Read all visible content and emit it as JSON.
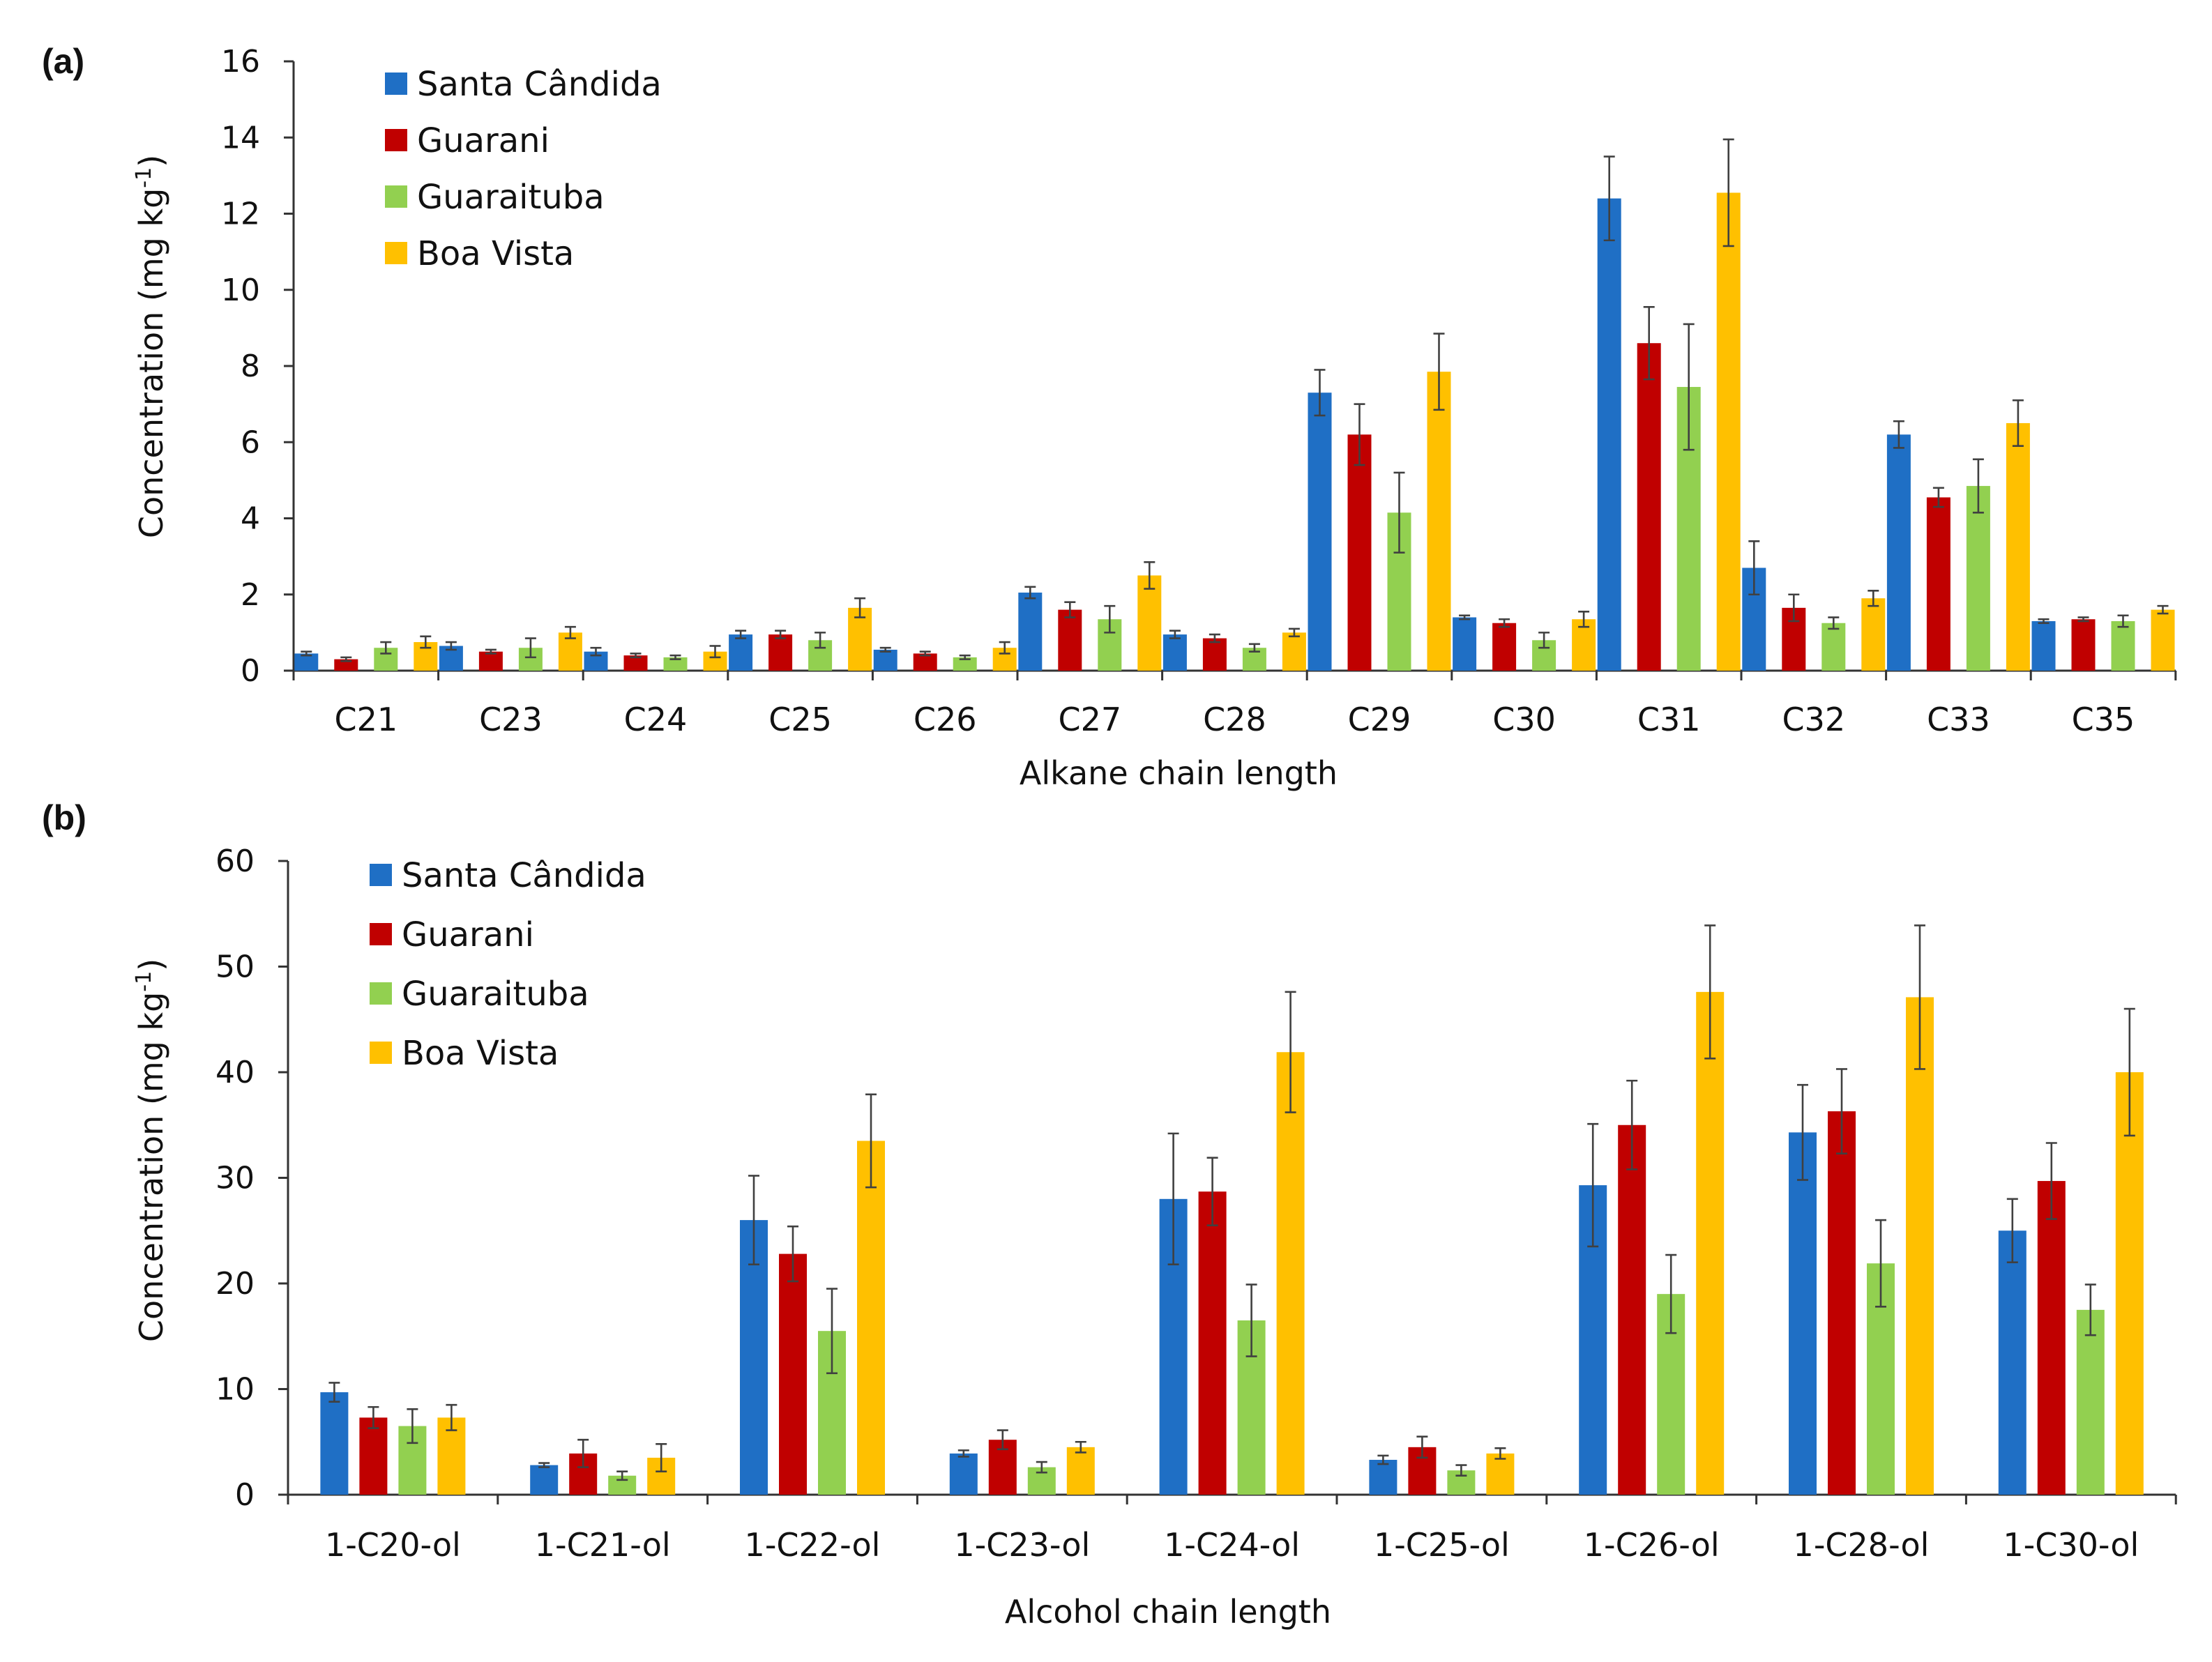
{
  "chart_data": [
    {
      "type": "bar",
      "panel_label": "(a)",
      "xlabel": "Alkane chain length",
      "ylabel_main": "Concentration (mg kg",
      "ylabel_sup": "-1",
      "ylabel_end": ")",
      "ylim": [
        0,
        16
      ],
      "yticks": [
        0,
        2,
        4,
        6,
        8,
        10,
        12,
        14,
        16
      ],
      "legend_position": "top-left",
      "categories": [
        "C21",
        "C23",
        "C24",
        "C25",
        "C26",
        "C27",
        "C28",
        "C29",
        "C30",
        "C31",
        "C32",
        "C33",
        "C35"
      ],
      "series": [
        {
          "name": "Santa Cândida",
          "color": "#1f6fc5",
          "values": [
            0.45,
            0.65,
            0.5,
            0.95,
            0.55,
            2.05,
            0.95,
            7.3,
            1.4,
            12.4,
            2.7,
            6.2,
            1.3
          ],
          "errors": [
            0.05,
            0.1,
            0.1,
            0.1,
            0.05,
            0.15,
            0.1,
            0.6,
            0.05,
            1.1,
            0.7,
            0.35,
            0.05
          ]
        },
        {
          "name": "Guarani",
          "color": "#c00000",
          "values": [
            0.3,
            0.5,
            0.4,
            0.95,
            0.45,
            1.6,
            0.85,
            6.2,
            1.25,
            8.6,
            1.65,
            4.55,
            1.35
          ],
          "errors": [
            0.05,
            0.05,
            0.05,
            0.1,
            0.05,
            0.2,
            0.1,
            0.8,
            0.1,
            0.95,
            0.35,
            0.25,
            0.05
          ]
        },
        {
          "name": "Guaraituba",
          "color": "#92d050",
          "values": [
            0.6,
            0.6,
            0.35,
            0.8,
            0.35,
            1.35,
            0.6,
            4.15,
            0.8,
            7.45,
            1.25,
            4.85,
            1.3
          ],
          "errors": [
            0.15,
            0.25,
            0.05,
            0.2,
            0.05,
            0.35,
            0.1,
            1.05,
            0.2,
            1.65,
            0.15,
            0.7,
            0.15
          ]
        },
        {
          "name": "Boa Vista",
          "color": "#ffc000",
          "values": [
            0.75,
            1.0,
            0.5,
            1.65,
            0.6,
            2.5,
            1.0,
            7.85,
            1.35,
            12.55,
            1.9,
            6.5,
            1.6
          ],
          "errors": [
            0.15,
            0.15,
            0.15,
            0.25,
            0.15,
            0.35,
            0.1,
            1.0,
            0.2,
            1.4,
            0.2,
            0.6,
            0.1
          ]
        }
      ]
    },
    {
      "type": "bar",
      "panel_label": "(b)",
      "xlabel": "Alcohol chain length",
      "ylabel_main": "Concentration (mg kg",
      "ylabel_sup": "-1",
      "ylabel_end": ")",
      "ylim": [
        0,
        60
      ],
      "yticks": [
        0,
        10,
        20,
        30,
        40,
        50,
        60
      ],
      "legend_position": "top-left",
      "categories": [
        "1-C20-ol",
        "1-C21-ol",
        "1-C22-ol",
        "1-C23-ol",
        "1-C24-ol",
        "1-C25-ol",
        "1-C26-ol",
        "1-C28-ol",
        "1-C30-ol"
      ],
      "series": [
        {
          "name": "Santa Cândida",
          "color": "#1f6fc5",
          "values": [
            9.7,
            2.8,
            26.0,
            3.9,
            28.0,
            3.3,
            29.3,
            34.3,
            25.0
          ],
          "errors": [
            0.9,
            0.2,
            4.2,
            0.3,
            6.2,
            0.4,
            5.8,
            4.5,
            3.0
          ]
        },
        {
          "name": "Guarani",
          "color": "#c00000",
          "values": [
            7.3,
            3.9,
            22.8,
            5.2,
            28.7,
            4.5,
            35.0,
            36.3,
            29.7
          ],
          "errors": [
            1.0,
            1.3,
            2.6,
            0.9,
            3.2,
            1.0,
            4.2,
            4.0,
            3.6
          ]
        },
        {
          "name": "Guaraituba",
          "color": "#92d050",
          "values": [
            6.5,
            1.8,
            15.5,
            2.6,
            16.5,
            2.3,
            19.0,
            21.9,
            17.5
          ],
          "errors": [
            1.6,
            0.4,
            4.0,
            0.5,
            3.4,
            0.5,
            3.7,
            4.1,
            2.4
          ]
        },
        {
          "name": "Boa Vista",
          "color": "#ffc000",
          "values": [
            7.3,
            3.5,
            33.5,
            4.5,
            41.9,
            3.9,
            47.6,
            47.1,
            40.0
          ],
          "errors": [
            1.2,
            1.3,
            4.4,
            0.5,
            5.7,
            0.5,
            6.3,
            6.8,
            6.0
          ]
        }
      ]
    }
  ]
}
